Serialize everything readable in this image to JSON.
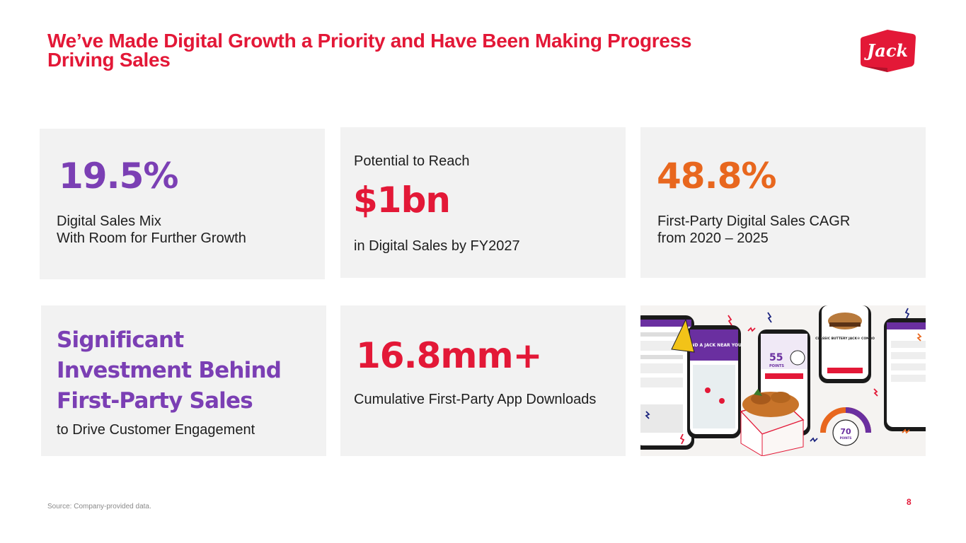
{
  "title": {
    "line1": "We’ve Made Digital Growth a Priority and Have Been Making Progress",
    "line2": "Driving Sales"
  },
  "logo": {
    "text": "Jack",
    "color": "#e31837"
  },
  "cards": {
    "digital_mix": {
      "value": "19.5%",
      "line1": "Digital Sales Mix",
      "line2": "With Room for Further Growth"
    },
    "potential": {
      "pre": "Potential to Reach",
      "value": "$1bn",
      "post": "in Digital Sales by FY2027"
    },
    "cagr": {
      "value": "48.8%",
      "line1": "First-Party Digital Sales CAGR",
      "line2": "from 2020 – 2025"
    },
    "investment": {
      "line1": "Significant",
      "line2": "Investment Behind",
      "line3": "First-Party Sales",
      "sub": "to Drive Customer Engagement"
    },
    "downloads": {
      "value": "16.8mm+",
      "label": "Cumulative First-Party App Downloads"
    },
    "app_image": {
      "phone1": "FIND A JACK NEAR YOU",
      "phone2_points": "55",
      "phone2_label": "POINTS",
      "phone3": "CLASSIC BUTTERY JACK® COMBO",
      "gauge_points": "70",
      "gauge_label": "POINTS"
    }
  },
  "footer": {
    "source": "Source: Company-provided data.",
    "page": "8"
  },
  "colors": {
    "red": "#e31837",
    "purple": "#7b3fb4",
    "orange": "#e8671e",
    "card": "#f2f2f2"
  }
}
